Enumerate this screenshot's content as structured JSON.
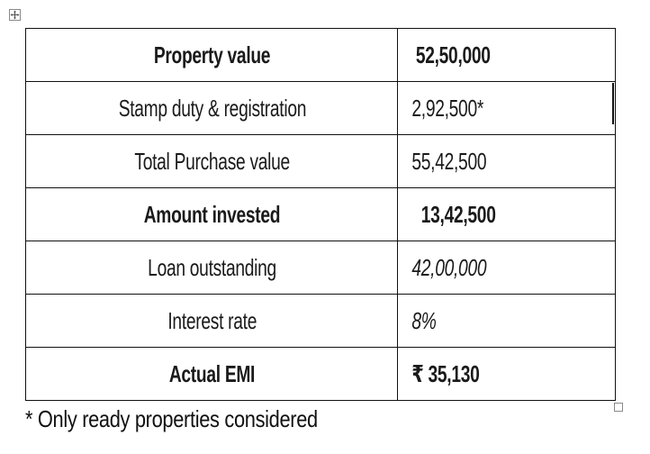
{
  "table": {
    "rows": [
      {
        "label": "Property value",
        "value": "52,50,000"
      },
      {
        "label": "Stamp duty & registration",
        "value": "2,92,500*"
      },
      {
        "label": "Total Purchase value",
        "value": "55,42,500"
      },
      {
        "label": "Amount invested",
        "value": "13,42,500"
      },
      {
        "label": "Loan outstanding",
        "value": "42,00,000"
      },
      {
        "label": "Interest rate",
        "value": "8%"
      },
      {
        "label": "Actual EMI",
        "value": "₹ 35,130"
      }
    ]
  },
  "footnote": "* Only ready properties considered",
  "icons": {
    "table_move_handle": "move-handle-icon",
    "table_resize_handle": "resize-handle-icon"
  }
}
